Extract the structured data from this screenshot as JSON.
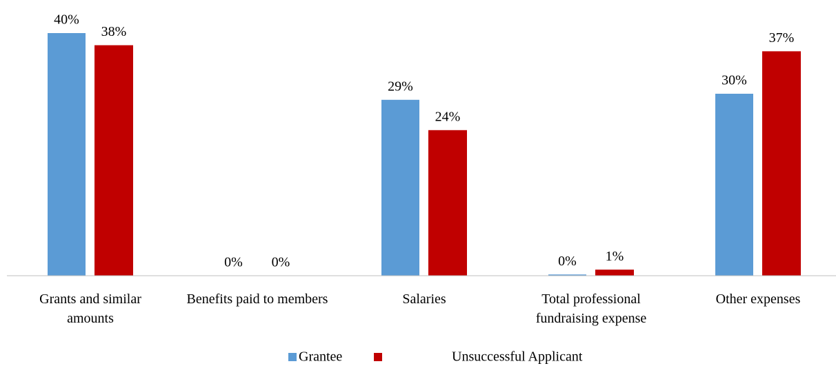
{
  "chart_data": {
    "type": "bar",
    "categories": [
      "Grants and similar amounts",
      "Benefits paid to members",
      "Salaries",
      "Total professional fundraising expense",
      "Other expenses"
    ],
    "series": [
      {
        "name": "Grantee",
        "color": "#5b9bd5",
        "values": [
          40,
          0,
          29,
          0.2,
          30
        ],
        "value_labels": [
          "40%",
          "0%",
          "29%",
          "0%",
          "30%"
        ]
      },
      {
        "name": "Unsuccessful Applicant",
        "color": "#c00000",
        "values": [
          38,
          0,
          24,
          1,
          37
        ],
        "value_labels": [
          "38%",
          "0%",
          "24%",
          "1%",
          "37%"
        ]
      }
    ],
    "ylim": [
      0,
      40
    ],
    "legend": "bottom"
  }
}
